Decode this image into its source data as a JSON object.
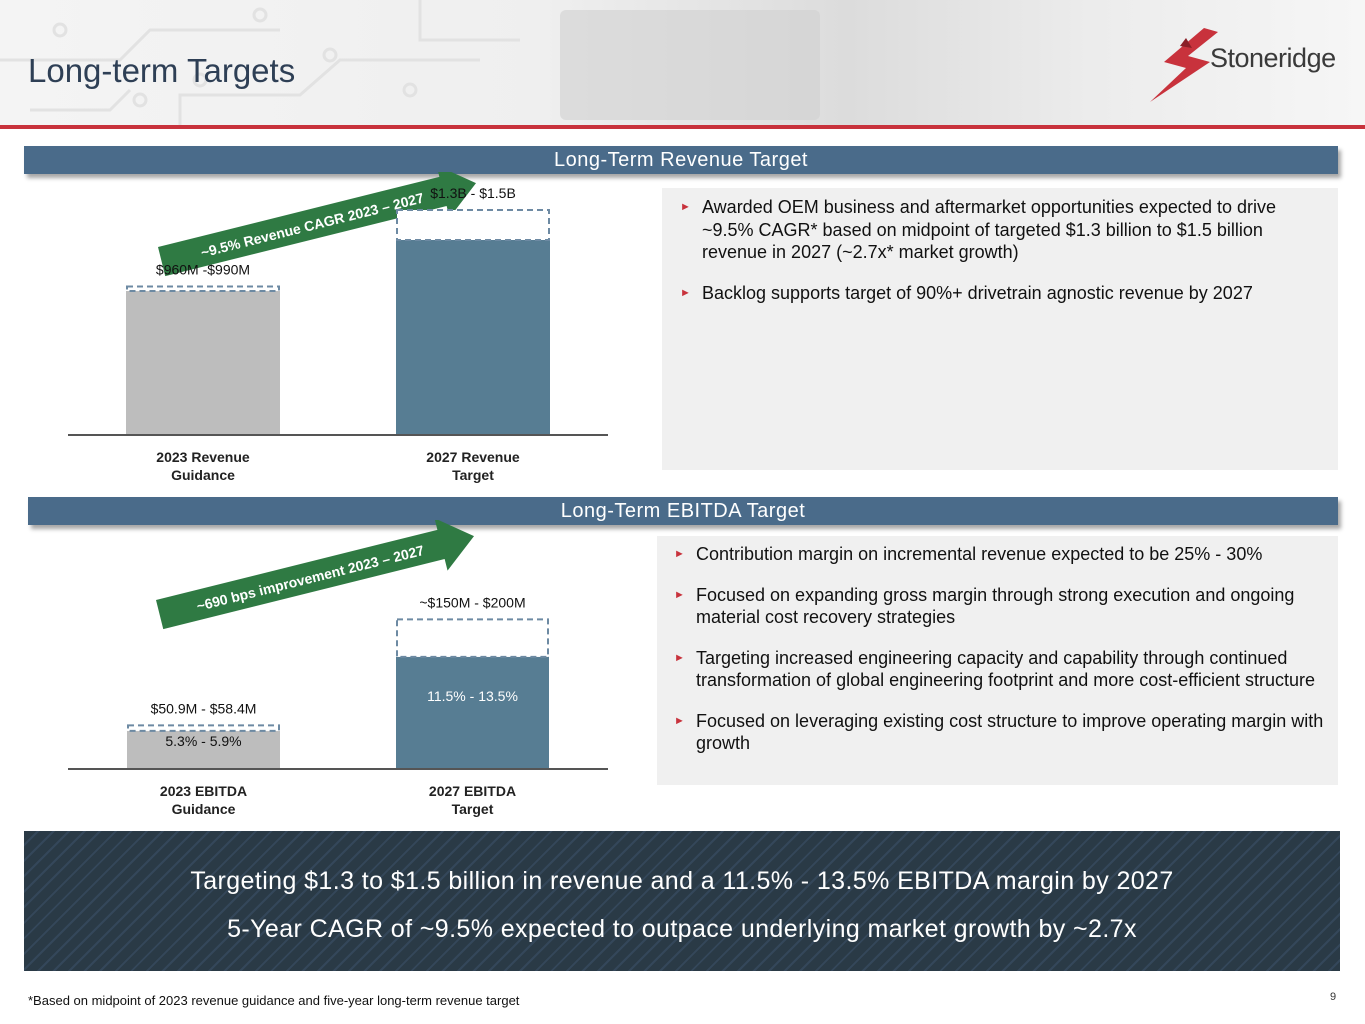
{
  "header": {
    "title": "Long-term Targets",
    "logo_text": "Stoneridge"
  },
  "colors": {
    "accent_red": "#c8323c",
    "band_blue": "#4a6b8a",
    "bar_grey": "#bdbdbd",
    "bar_blue": "#577d93",
    "arrow_green": "#2f7a43"
  },
  "revenue": {
    "band_label": "Long-Term Revenue Target",
    "bullets": [
      "Awarded OEM business and aftermarket opportunities expected to drive ~9.5% CAGR* based on midpoint of targeted $1.3 billion to $1.5 billion revenue in 2027 (~2.7x* market growth)",
      "Backlog supports target of 90%+ drivetrain agnostic revenue by 2027"
    ]
  },
  "ebitda": {
    "band_label": "Long-Term EBITDA Target",
    "bullets": [
      "Contribution margin on incremental revenue expected to be 25% - 30%",
      "Focused on expanding gross margin through strong execution and ongoing material cost recovery strategies",
      "Targeting increased engineering capacity and capability through continued transformation of global engineering footprint and more cost-efficient structure",
      "Focused on leveraging existing cost structure to improve operating margin with growth"
    ]
  },
  "chart_data": [
    {
      "type": "bar",
      "title": "Long-Term Revenue Target",
      "categories": [
        "2023 Revenue Guidance",
        "2027 Revenue Target"
      ],
      "cat_lines": [
        [
          "2023 Revenue",
          "Guidance"
        ],
        [
          "2027 Revenue",
          "Target"
        ]
      ],
      "unit": "$M",
      "ylim": [
        0,
        1600
      ],
      "low": [
        960,
        1300
      ],
      "high": [
        990,
        1500
      ],
      "range_labels": [
        "$960M -$990M",
        "$1.3B - $1.5B"
      ],
      "inner_labels": [
        "",
        ""
      ],
      "arrow_label": "~9.5% Revenue CAGR 2023 – 2027"
    },
    {
      "type": "bar",
      "title": "Long-Term EBITDA Target",
      "categories": [
        "2023 EBITDA Guidance",
        "2027 EBITDA Target"
      ],
      "cat_lines": [
        [
          "2023 EBITDA",
          "Guidance"
        ],
        [
          "2027 EBITDA",
          "Target"
        ]
      ],
      "unit": "$M",
      "ylim": [
        0,
        230
      ],
      "low": [
        50.9,
        150
      ],
      "high": [
        58.4,
        200
      ],
      "range_labels": [
        "$50.9M - $58.4M",
        "~$150M - $200M"
      ],
      "inner_labels": [
        "5.3% - 5.9%",
        "11.5% - 13.5%"
      ],
      "arrow_label": "~690 bps improvement 2023 – 2027"
    }
  ],
  "summary": {
    "line1": "Targeting $1.3 to $1.5 billion in revenue and a 11.5% - 13.5% EBITDA margin by 2027",
    "line2": "5-Year CAGR of ~9.5% expected to outpace underlying market growth by ~2.7x"
  },
  "footnote": "*Based on midpoint of 2023 revenue guidance and five-year long-term revenue target",
  "page_number": "9"
}
